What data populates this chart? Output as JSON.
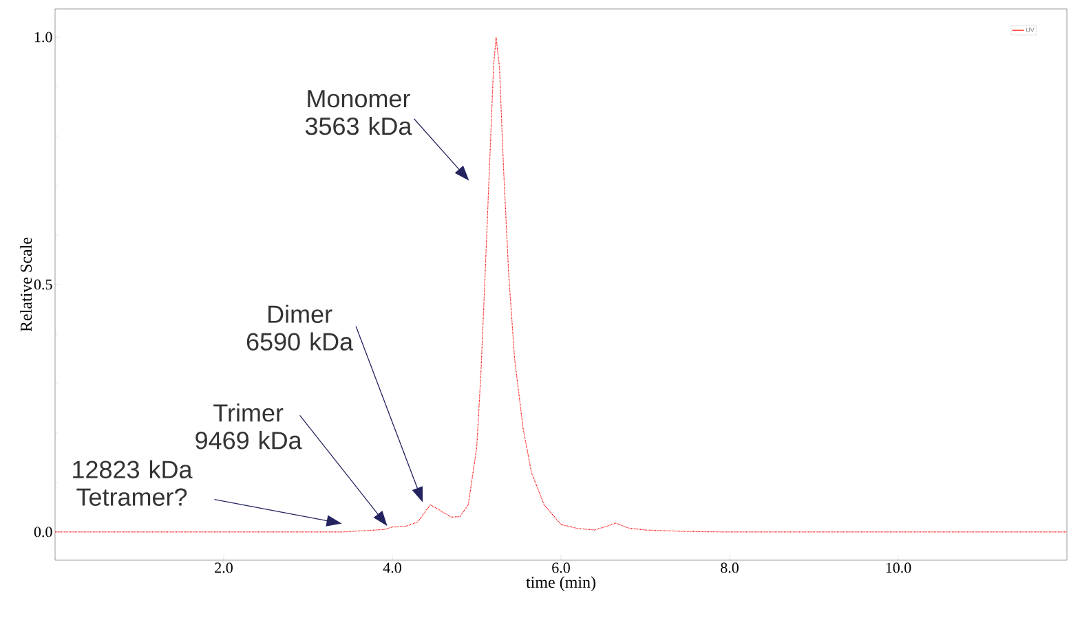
{
  "chart_data": {
    "type": "line",
    "xlabel": "time (min)",
    "ylabel": "Relative Scale",
    "xlim": [
      0,
      12
    ],
    "ylim": [
      -0.057,
      1.057
    ],
    "xticks": [
      {
        "value": 2,
        "label": "2.0"
      },
      {
        "value": 4,
        "label": "4.0"
      },
      {
        "value": 6,
        "label": "6.0"
      },
      {
        "value": 8,
        "label": "8.0"
      },
      {
        "value": 10,
        "label": "10.0"
      }
    ],
    "yticks": [
      {
        "value": 0,
        "label": "0.0"
      },
      {
        "value": 0.5,
        "label": "0.5"
      },
      {
        "value": 1,
        "label": "1.0"
      }
    ],
    "legend": "top right",
    "line_style": "dotted",
    "marker": "none",
    "x": [
      0,
      3.4,
      3.5,
      3.9,
      4.0,
      4.15,
      4.3,
      4.45,
      4.55,
      4.7,
      4.8,
      4.9,
      5.0,
      5.05,
      5.1,
      5.15,
      5.2,
      5.23,
      5.27,
      5.32,
      5.38,
      5.45,
      5.55,
      5.65,
      5.8,
      6.0,
      6.2,
      6.4,
      6.55,
      6.65,
      6.8,
      7.0,
      7.5,
      8.0,
      12
    ],
    "series": [
      {
        "name": "UV",
        "color": "#ff0000",
        "values": [
          0,
          0,
          0.001,
          0.005,
          0.01,
          0.011,
          0.02,
          0.055,
          0.045,
          0.03,
          0.031,
          0.055,
          0.17,
          0.32,
          0.52,
          0.73,
          0.94,
          1.0,
          0.94,
          0.73,
          0.52,
          0.35,
          0.21,
          0.12,
          0.055,
          0.015,
          0.007,
          0.004,
          0.012,
          0.018,
          0.008,
          0.004,
          0.001,
          0,
          0
        ]
      }
    ],
    "annotations": [
      "Monomer 3563 kDa",
      "Dimer 6590 kDa",
      "Trimer 9469 kDa",
      "12823 kDa Tetramer?"
    ]
  }
}
